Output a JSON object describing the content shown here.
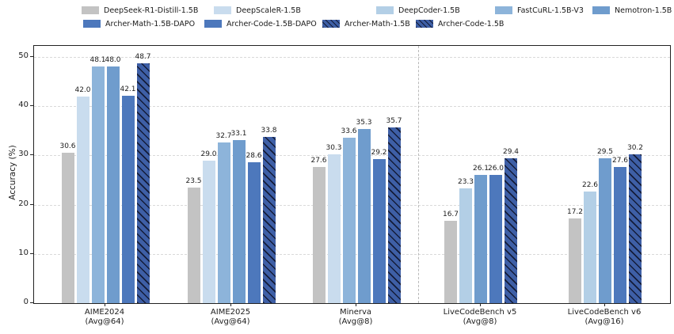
{
  "legend": {
    "rows": [
      [
        {
          "label": "DeepSeek-R1-Distill-1.5B",
          "color": "#c3c3c3",
          "hatch": false
        },
        {
          "label": "DeepScaleR-1.5B",
          "color": "#c9dcee",
          "hatch": false
        },
        {
          "label": "DeepCoder-1.5B",
          "color": "#b3cfe6",
          "hatch": false
        },
        {
          "label": "FastCuRL-1.5B-V3",
          "color": "#8db4da",
          "hatch": false
        },
        {
          "label": "Nemotron-1.5B",
          "color": "#6f9ccd",
          "hatch": false
        }
      ],
      [
        {
          "label": "Archer-Math-1.5B-DAPO",
          "color": "#4d78bc",
          "hatch": false
        },
        {
          "label": "Archer-Code-1.5B-DAPO",
          "color": "#4d78bc",
          "hatch": false
        },
        {
          "label": "Archer-Math-1.5B",
          "color": "#3e5fa6",
          "hatch": true
        },
        {
          "label": "Archer-Code-1.5B",
          "color": "#3e5fa6",
          "hatch": true
        }
      ]
    ]
  },
  "chart_data": {
    "type": "bar",
    "title": "",
    "ylabel": "Accuracy (%)",
    "xlabel": "",
    "ylim": [
      0,
      52.3
    ],
    "yticks": [
      0,
      10,
      20,
      30,
      40,
      50
    ],
    "grid": "horizontal-dashed",
    "legend_position": "top",
    "hatch_color": "#141c38",
    "separator_after_group_index": 2,
    "groups": [
      {
        "label": "AIME2024",
        "sublabel": "(Avg@64)",
        "bars": [
          {
            "series": "DeepSeek-R1-Distill-1.5B",
            "value": 30.6,
            "label": "30.6",
            "color": "#c3c3c3",
            "hatch": false
          },
          {
            "series": "DeepScaleR-1.5B",
            "value": 42.0,
            "label": "42.0",
            "color": "#c9dcee",
            "hatch": false
          },
          {
            "series": "FastCuRL-1.5B-V3",
            "value": 48.1,
            "label": "48.1",
            "color": "#8db4da",
            "hatch": false
          },
          {
            "series": "Nemotron-1.5B",
            "value": 48.0,
            "label": "48.0",
            "color": "#6f9ccd",
            "hatch": false
          },
          {
            "series": "Archer-Math-1.5B-DAPO",
            "value": 42.1,
            "label": "42.1",
            "color": "#4d78bc",
            "hatch": false
          },
          {
            "series": "Archer-Math-1.5B",
            "value": 48.7,
            "label": "48.7",
            "color": "#3e5fa6",
            "hatch": true
          }
        ]
      },
      {
        "label": "AIME2025",
        "sublabel": "(Avg@64)",
        "bars": [
          {
            "series": "DeepSeek-R1-Distill-1.5B",
            "value": 23.5,
            "label": "23.5",
            "color": "#c3c3c3",
            "hatch": false
          },
          {
            "series": "DeepScaleR-1.5B",
            "value": 29.0,
            "label": "29.0",
            "color": "#c9dcee",
            "hatch": false
          },
          {
            "series": "FastCuRL-1.5B-V3",
            "value": 32.7,
            "label": "32.7",
            "color": "#8db4da",
            "hatch": false
          },
          {
            "series": "Nemotron-1.5B",
            "value": 33.1,
            "label": "33.1",
            "color": "#6f9ccd",
            "hatch": false
          },
          {
            "series": "Archer-Math-1.5B-DAPO",
            "value": 28.6,
            "label": "28.6",
            "color": "#4d78bc",
            "hatch": false
          },
          {
            "series": "Archer-Math-1.5B",
            "value": 33.8,
            "label": "33.8",
            "color": "#3e5fa6",
            "hatch": true
          }
        ]
      },
      {
        "label": "Minerva",
        "sublabel": "(Avg@8)",
        "bars": [
          {
            "series": "DeepSeek-R1-Distill-1.5B",
            "value": 27.6,
            "label": "27.6",
            "color": "#c3c3c3",
            "hatch": false
          },
          {
            "series": "DeepScaleR-1.5B",
            "value": 30.3,
            "label": "30.3",
            "color": "#c9dcee",
            "hatch": false
          },
          {
            "series": "FastCuRL-1.5B-V3",
            "value": 33.6,
            "label": "33.6",
            "color": "#8db4da",
            "hatch": false
          },
          {
            "series": "Nemotron-1.5B",
            "value": 35.3,
            "label": "35.3",
            "color": "#6f9ccd",
            "hatch": false
          },
          {
            "series": "Archer-Math-1.5B-DAPO",
            "value": 29.2,
            "label": "29.2",
            "color": "#4d78bc",
            "hatch": false
          },
          {
            "series": "Archer-Math-1.5B",
            "value": 35.7,
            "label": "35.7",
            "color": "#3e5fa6",
            "hatch": true
          }
        ]
      },
      {
        "label": "LiveCodeBench v5",
        "sublabel": "(Avg@8)",
        "bars": [
          {
            "series": "DeepSeek-R1-Distill-1.5B",
            "value": 16.7,
            "label": "16.7",
            "color": "#c3c3c3",
            "hatch": false
          },
          {
            "series": "DeepCoder-1.5B",
            "value": 23.3,
            "label": "23.3",
            "color": "#b3cfe6",
            "hatch": false
          },
          {
            "series": "Nemotron-1.5B",
            "value": 26.1,
            "label": "26.1",
            "color": "#6f9ccd",
            "hatch": false
          },
          {
            "series": "Archer-Code-1.5B-DAPO",
            "value": 26.0,
            "label": "26.0",
            "color": "#4d78bc",
            "hatch": false
          },
          {
            "series": "Archer-Code-1.5B",
            "value": 29.4,
            "label": "29.4",
            "color": "#3e5fa6",
            "hatch": true
          }
        ]
      },
      {
        "label": "LiveCodeBench v6",
        "sublabel": "(Avg@16)",
        "bars": [
          {
            "series": "DeepSeek-R1-Distill-1.5B",
            "value": 17.2,
            "label": "17.2",
            "color": "#c3c3c3",
            "hatch": false
          },
          {
            "series": "DeepCoder-1.5B",
            "value": 22.6,
            "label": "22.6",
            "color": "#b3cfe6",
            "hatch": false
          },
          {
            "series": "Nemotron-1.5B",
            "value": 29.5,
            "label": "29.5",
            "color": "#6f9ccd",
            "hatch": false
          },
          {
            "series": "Archer-Code-1.5B-DAPO",
            "value": 27.6,
            "label": "27.6",
            "color": "#4d78bc",
            "hatch": false
          },
          {
            "series": "Archer-Code-1.5B",
            "value": 30.2,
            "label": "30.2",
            "color": "#3e5fa6",
            "hatch": true
          }
        ]
      }
    ]
  }
}
